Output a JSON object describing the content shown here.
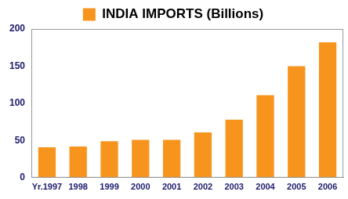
{
  "chart_data": {
    "type": "bar",
    "categories": [
      "Yr.1997",
      "1998",
      "1999",
      "2000",
      "2001",
      "2002",
      "2003",
      "2004",
      "2005",
      "2006"
    ],
    "series": [
      {
        "name": "INDIA IMPORTS (Billions)",
        "color": "#f7941d",
        "values": [
          41,
          42,
          49,
          51,
          51,
          61,
          78,
          111,
          150,
          182
        ]
      }
    ],
    "ylim": [
      0,
      200
    ],
    "yticks": [
      0,
      50,
      100,
      150,
      200
    ],
    "grid": false,
    "legend": "top"
  }
}
